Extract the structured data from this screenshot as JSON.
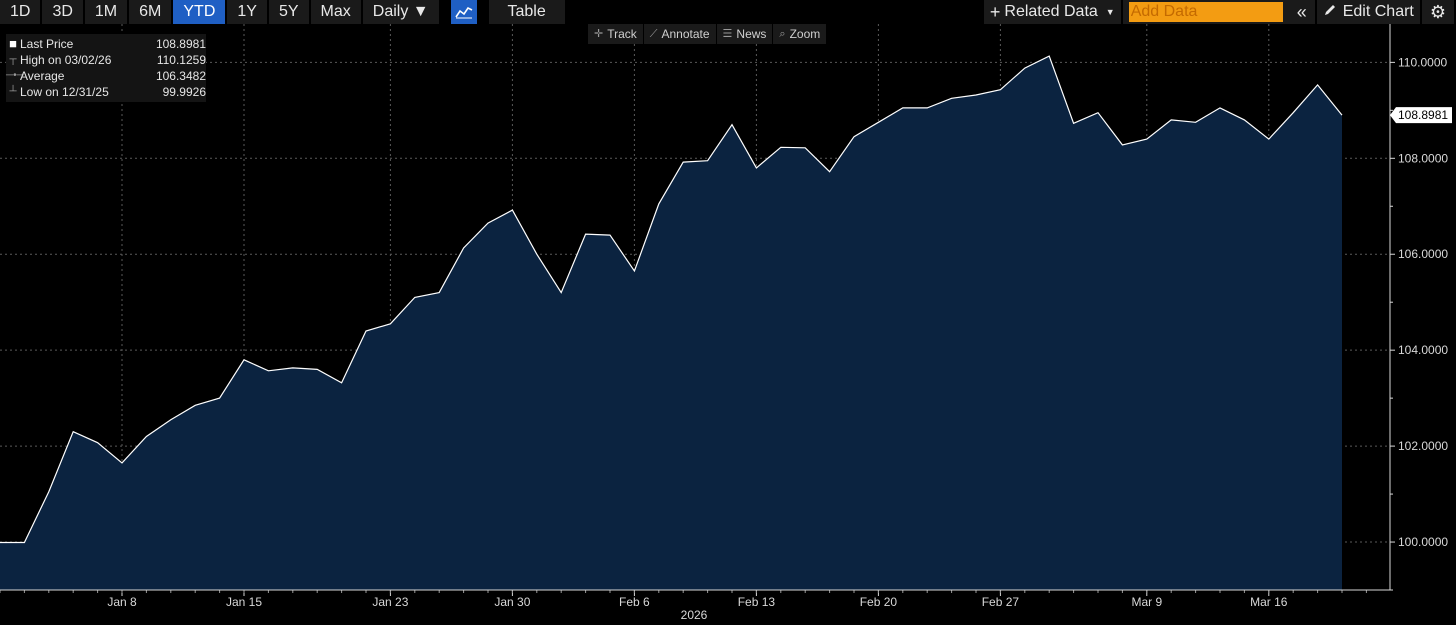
{
  "toolbar": {
    "ranges": [
      "1D",
      "3D",
      "1M",
      "6M",
      "YTD",
      "1Y",
      "5Y",
      "Max"
    ],
    "active_range": "YTD",
    "frequency": "Daily ▼",
    "chart_icon": "line-chart-icon",
    "table_label": "Table",
    "related_data": "Related Data",
    "add_data_placeholder": "Add Data",
    "edit_chart": "Edit Chart",
    "accent_color": "#1f5fc4",
    "add_data_color": "#f39c12"
  },
  "subtools": [
    {
      "icon": "crosshair-icon",
      "label": "Track"
    },
    {
      "icon": "annotate-icon",
      "label": "Annotate"
    },
    {
      "icon": "news-icon",
      "label": "News"
    },
    {
      "icon": "zoom-icon",
      "label": "Zoom"
    }
  ],
  "legend": [
    {
      "label": "Last Price",
      "value": "108.8981"
    },
    {
      "label": "High on 03/02/26",
      "value": "110.1259"
    },
    {
      "label": "Average",
      "value": "106.3482"
    },
    {
      "label": "Low on 12/31/25",
      "value": "99.9926"
    }
  ],
  "chart_data": {
    "type": "area",
    "year_label": "2026",
    "last_value_label": "108.8981",
    "line_color": "#ffffff",
    "fill_color": "#0b2340",
    "ylim": [
      99,
      110.8
    ],
    "yticks": [
      100,
      102,
      104,
      106,
      108,
      110
    ],
    "ytick_labels": [
      "100.0000",
      "102.0000",
      "104.0000",
      "106.0000",
      "108.0000",
      "110.0000"
    ],
    "xtick_labels": [
      "Jan 8",
      "Jan 15",
      "Jan 23",
      "Jan 30",
      "Feb 6",
      "Feb 13",
      "Feb 20",
      "Feb 27",
      "Mar 9",
      "Mar 16"
    ],
    "xtick_index": [
      5,
      10,
      16,
      21,
      26,
      31,
      36,
      41,
      47,
      52
    ],
    "grid": true,
    "series": [
      {
        "values": [
          99.99,
          99.99,
          101.05,
          102.3,
          102.07,
          101.65,
          102.2,
          102.55,
          102.85,
          103.0,
          103.8,
          103.57,
          103.63,
          103.6,
          103.32,
          104.4,
          104.55,
          105.1,
          105.2,
          106.13,
          106.65,
          106.92,
          106.0,
          105.2,
          106.42,
          106.4,
          105.65,
          107.05,
          107.92,
          107.95,
          108.7,
          107.8,
          108.23,
          108.22,
          107.72,
          108.45,
          108.75,
          109.05,
          109.05,
          109.25,
          109.32,
          109.43,
          109.88,
          110.13,
          108.73,
          108.95,
          108.28,
          108.4,
          108.8,
          108.75,
          109.05,
          108.8,
          108.4,
          108.95,
          109.53,
          108.9
        ]
      }
    ]
  }
}
